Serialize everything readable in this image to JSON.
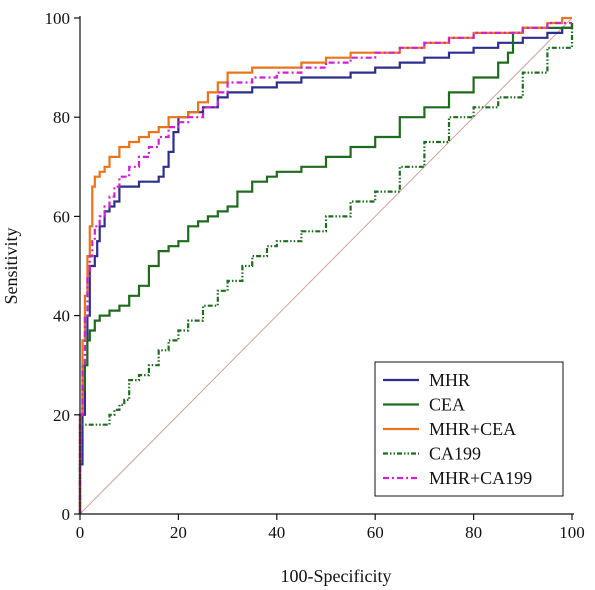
{
  "chart_data": {
    "type": "line",
    "title": "",
    "xlabel": "100-Specificity",
    "ylabel": "Sensitivity",
    "xlim": [
      0,
      100
    ],
    "ylim": [
      0,
      100
    ],
    "xticks": [
      0,
      20,
      40,
      60,
      80,
      100
    ],
    "yticks": [
      0,
      20,
      40,
      60,
      80,
      100
    ],
    "grid": false,
    "legend_position": "bottom-right",
    "reference_line": {
      "x": [
        0,
        100
      ],
      "y": [
        0,
        100
      ],
      "color": "#d8a0a0"
    },
    "series": [
      {
        "name": "MHR",
        "color": "#2e2e8f",
        "dash": "solid",
        "x": [
          0,
          0,
          0.5,
          0.5,
          1,
          1,
          1.5,
          2,
          2,
          3,
          3.5,
          4,
          5,
          6,
          7,
          8,
          9,
          10,
          12,
          14,
          16,
          17,
          18,
          19,
          20,
          22,
          25,
          28,
          30,
          35,
          40,
          45,
          50,
          55,
          60,
          65,
          70,
          75,
          80,
          85,
          90,
          95,
          98,
          100
        ],
        "y": [
          0,
          10,
          10,
          20,
          22,
          30,
          40,
          45,
          50,
          52,
          55,
          58,
          61,
          62,
          63,
          66,
          66,
          66,
          67,
          67,
          68,
          70,
          73,
          77,
          80,
          81,
          82,
          84,
          85,
          86,
          87,
          88,
          88,
          89,
          90,
          91,
          92,
          93,
          94,
          95,
          96,
          97,
          98,
          99
        ]
      },
      {
        "name": "CEA",
        "color": "#1e6b1e",
        "dash": "solid",
        "x": [
          0,
          0,
          0.5,
          1,
          1.5,
          2,
          3,
          4,
          5,
          6,
          8,
          10,
          12,
          14,
          16,
          18,
          20,
          22,
          24,
          26,
          28,
          30,
          32,
          35,
          38,
          40,
          45,
          50,
          55,
          60,
          65,
          70,
          75,
          80,
          85,
          87,
          88,
          90,
          95,
          100
        ],
        "y": [
          0,
          20,
          25,
          30,
          35,
          37,
          39,
          40,
          40,
          41,
          42,
          44,
          46,
          50,
          53,
          54,
          55,
          58,
          59,
          60,
          61,
          62,
          65,
          67,
          68,
          69,
          70,
          72,
          74,
          76,
          80,
          82,
          85,
          88,
          91,
          93,
          97,
          98,
          98,
          99
        ]
      },
      {
        "name": "MHR+CEA",
        "color": "#e8751a",
        "dash": "solid",
        "x": [
          0,
          0,
          0.5,
          0.5,
          1,
          1.5,
          2,
          2.5,
          3,
          4,
          5,
          6,
          8,
          10,
          12,
          14,
          16,
          18,
          20,
          22,
          24,
          26,
          28,
          30,
          35,
          40,
          45,
          50,
          55,
          60,
          65,
          70,
          75,
          80,
          85,
          90,
          95,
          98,
          100
        ],
        "y": [
          0,
          20,
          28,
          35,
          44,
          52,
          58,
          66,
          68,
          69,
          70,
          72,
          74,
          75,
          76,
          77,
          78,
          80,
          80,
          81,
          83,
          85,
          87,
          89,
          90,
          90,
          91,
          92,
          93,
          93,
          94,
          95,
          96,
          97,
          97,
          98,
          99,
          100,
          100
        ]
      },
      {
        "name": "CA199",
        "color": "#1e6b1e",
        "dash": "dashdotdot",
        "x": [
          0,
          0,
          1,
          3,
          5,
          6,
          7,
          8,
          9,
          10,
          12,
          14,
          16,
          18,
          20,
          22,
          25,
          28,
          30,
          33,
          35,
          38,
          40,
          45,
          50,
          55,
          60,
          65,
          70,
          75,
          80,
          85,
          90,
          95,
          100
        ],
        "y": [
          0,
          18,
          18,
          18,
          18,
          20,
          21,
          22,
          23,
          27,
          28,
          30,
          33,
          35,
          37,
          39,
          42,
          45,
          47,
          50,
          52,
          54,
          55,
          57,
          60,
          63,
          65,
          70,
          75,
          80,
          82,
          84,
          89,
          94,
          99
        ]
      },
      {
        "name": "MHR+CA199",
        "color": "#d21fd2",
        "dash": "dashdot",
        "x": [
          0,
          0,
          0.5,
          1,
          1.5,
          2,
          2.5,
          3,
          4,
          5,
          6,
          7,
          8,
          10,
          12,
          14,
          16,
          18,
          20,
          22,
          25,
          28,
          30,
          35,
          40,
          45,
          50,
          55,
          60,
          65,
          70,
          75,
          80,
          85,
          90,
          95,
          98,
          100
        ],
        "y": [
          0,
          20,
          30,
          40,
          48,
          52,
          55,
          58,
          60,
          62,
          64,
          66,
          68,
          70,
          72,
          74,
          76,
          78,
          79,
          80,
          82,
          85,
          87,
          88,
          89,
          90,
          91,
          92,
          93,
          94,
          95,
          96,
          97,
          97,
          98,
          99,
          99,
          99
        ]
      }
    ]
  }
}
